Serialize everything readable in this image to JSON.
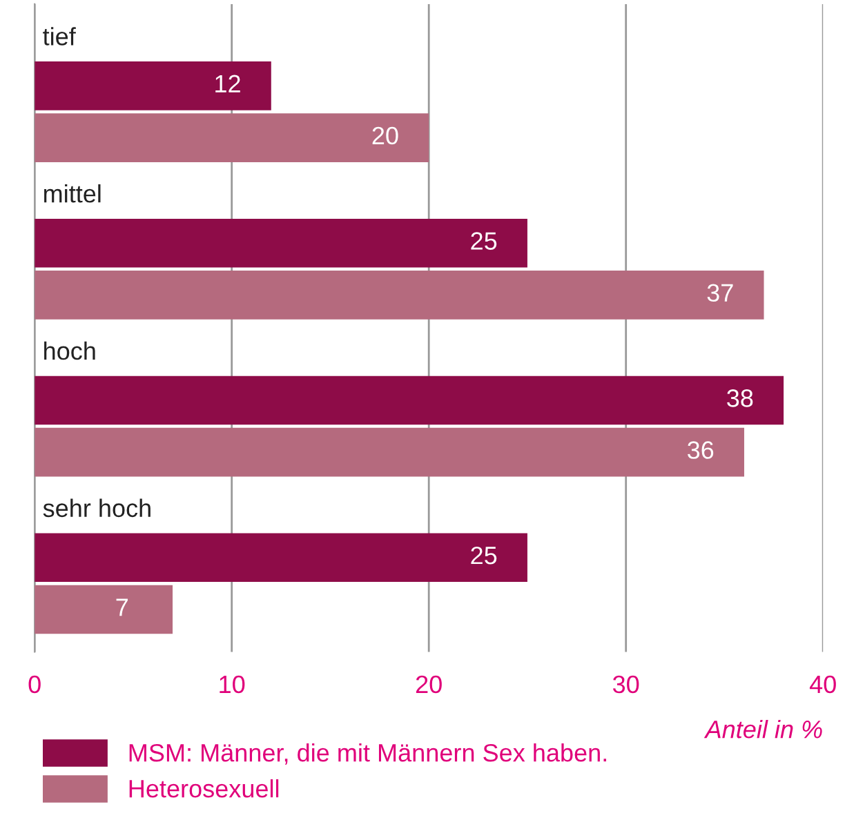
{
  "chart_data": {
    "type": "bar",
    "orientation": "horizontal",
    "xlabel": "Anteil in %",
    "categories": [
      "tief",
      "mittel",
      "hoch",
      "sehr hoch"
    ],
    "series": [
      {
        "name": "MSM: Männer, die mit Männern Sex haben.",
        "color": "#8e0c48",
        "values": [
          12,
          25,
          38,
          25
        ]
      },
      {
        "name": "Heterosexuell",
        "color": "#b56a7e",
        "values": [
          20,
          37,
          36,
          7
        ]
      }
    ],
    "xlim": [
      0,
      40
    ],
    "xticks": [
      0,
      10,
      20,
      30,
      40
    ],
    "grid": "x",
    "legend": "bottom left",
    "data_labels": true
  }
}
